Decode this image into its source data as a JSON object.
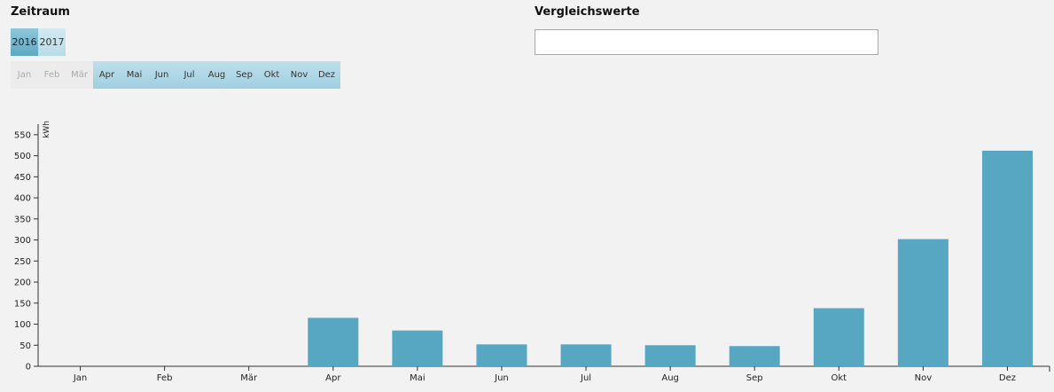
{
  "zeitraum": {
    "title": "Zeitraum",
    "years": [
      {
        "label": "2016",
        "active": true
      },
      {
        "label": "2017",
        "active": false
      }
    ],
    "months": [
      {
        "label": "Jan",
        "enabled": false
      },
      {
        "label": "Feb",
        "enabled": false
      },
      {
        "label": "Mär",
        "enabled": false
      },
      {
        "label": "Apr",
        "enabled": true
      },
      {
        "label": "Mai",
        "enabled": true
      },
      {
        "label": "Jun",
        "enabled": true
      },
      {
        "label": "Jul",
        "enabled": true
      },
      {
        "label": "Aug",
        "enabled": true
      },
      {
        "label": "Sep",
        "enabled": true
      },
      {
        "label": "Okt",
        "enabled": true
      },
      {
        "label": "Nov",
        "enabled": true
      },
      {
        "label": "Dez",
        "enabled": true
      }
    ]
  },
  "vergleich": {
    "title": "Vergleichswerte",
    "input_value": ""
  },
  "colors": {
    "bar": "#58a7c2",
    "year_active": "#5ea9c2",
    "month_enabled": "#a9d4e3"
  },
  "chart_data": {
    "type": "bar",
    "ylabel": "kWh",
    "xlabel": "",
    "categories": [
      "Jan",
      "Feb",
      "Mär",
      "Apr",
      "Mai",
      "Jun",
      "Jul",
      "Aug",
      "Sep",
      "Okt",
      "Nov",
      "Dez"
    ],
    "values": [
      0,
      0,
      0,
      115,
      85,
      52,
      52,
      50,
      48,
      138,
      302,
      512
    ],
    "ylim": [
      0,
      575
    ],
    "yticks": [
      0,
      50,
      100,
      150,
      200,
      250,
      300,
      350,
      400,
      450,
      500,
      550
    ],
    "grid": false
  }
}
